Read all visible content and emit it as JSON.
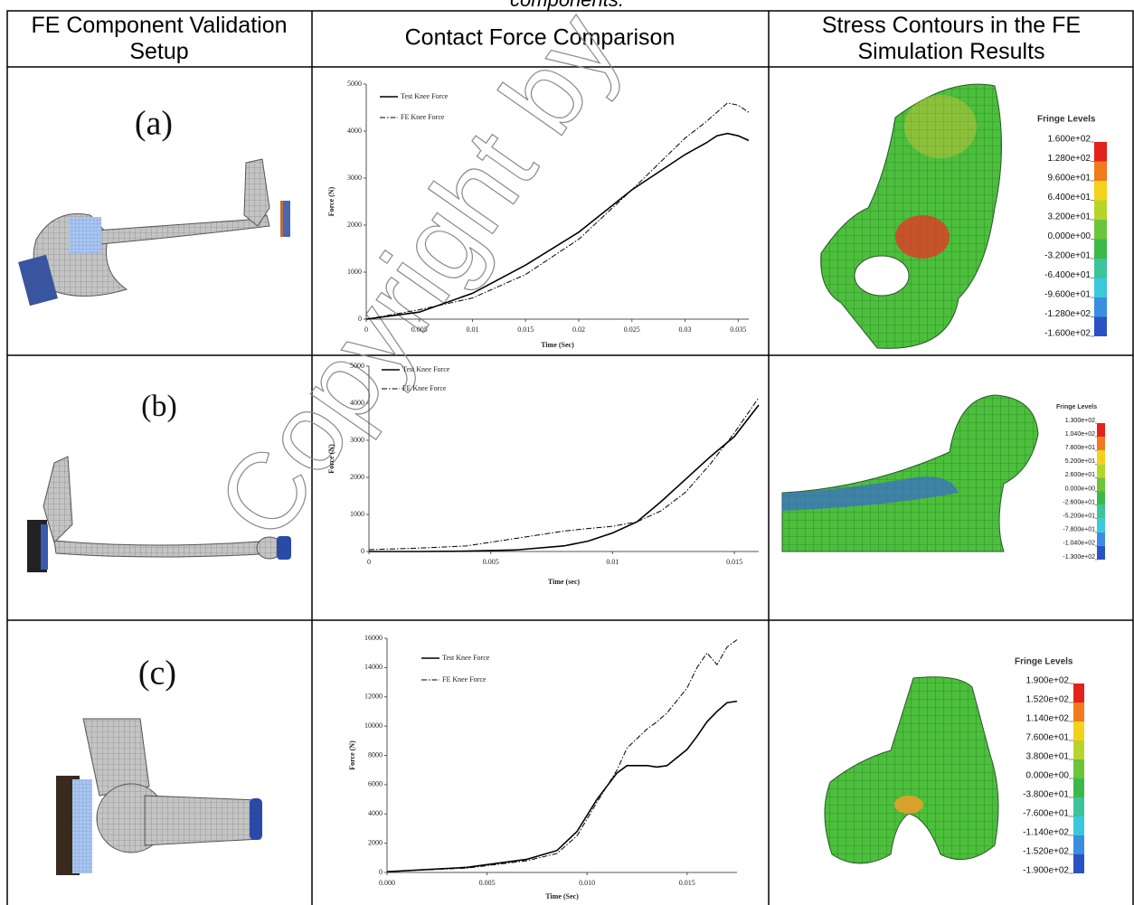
{
  "caption": "components.",
  "watermark": "Copyright by",
  "table": {
    "headers": [
      "FE Component Validation Setup",
      "Contact Force Comparison",
      "Stress Contours in the FE Simulation Results"
    ],
    "rows": [
      {
        "label": "(a)",
        "fringe": {
          "title": "Fringe Levels",
          "levels": [
            "1.600e+02",
            "1.280e+02",
            "9.600e+01",
            "6.400e+01",
            "3.200e+01",
            "0.000e+00",
            "-3.200e+01",
            "-6.400e+01",
            "-9.600e+01",
            "-1.280e+02",
            "-1.600e+02"
          ]
        }
      },
      {
        "label": "(b)",
        "fringe": {
          "title": "Fringe Levels",
          "levels": [
            "1.300e+02",
            "1.040e+02",
            "7.800e+01",
            "5.200e+01",
            "2.600e+01",
            "0.000e+00",
            "-2.600e+01",
            "-5.200e+01",
            "-7.800e+01",
            "-1.040e+02",
            "-1.300e+02"
          ]
        }
      },
      {
        "label": "(c)",
        "fringe": {
          "title": "Fringe Levels",
          "levels": [
            "1.900e+02",
            "1.520e+02",
            "1.140e+02",
            "7.600e+01",
            "3.800e+01",
            "0.000e+00",
            "-3.800e+01",
            "-7.600e+01",
            "-1.140e+02",
            "-1.520e+02",
            "-1.900e+02"
          ]
        }
      }
    ],
    "fringe_colors": [
      "#e3221c",
      "#f07a1c",
      "#f3d21c",
      "#b8d42a",
      "#6cc43a",
      "#3cb84a",
      "#3cc49a",
      "#3cc8dc",
      "#3a8ee0",
      "#2a52c4"
    ]
  },
  "chart_data": [
    {
      "type": "line",
      "xlabel": "Time (Sec)",
      "ylabel": "Force (N)",
      "xlim": [
        0,
        0.036
      ],
      "ylim": [
        0,
        5000
      ],
      "xticks": [
        0,
        0.005,
        0.01,
        0.015,
        0.02,
        0.025,
        0.03,
        0.035
      ],
      "yticks": [
        0,
        1000,
        2000,
        3000,
        4000,
        5000
      ],
      "x": [
        0,
        0.005,
        0.01,
        0.015,
        0.02,
        0.025,
        0.03,
        0.032,
        0.033,
        0.034,
        0.035,
        0.036
      ],
      "series": [
        {
          "name": "Test Knee Force",
          "color": "#000000",
          "style": "solid",
          "values": [
            0,
            150,
            550,
            1150,
            1850,
            2750,
            3500,
            3750,
            3900,
            3950,
            3900,
            3800
          ]
        },
        {
          "name": "FE Knee Force",
          "color": "#000000",
          "style": "dashdot",
          "values": [
            0,
            200,
            450,
            950,
            1700,
            2750,
            3850,
            4200,
            4400,
            4600,
            4550,
            4400
          ]
        }
      ]
    },
    {
      "type": "line",
      "xlabel": "Time (sec)",
      "ylabel": "Force (N)",
      "xlim": [
        0,
        0.016
      ],
      "ylim": [
        0,
        5000
      ],
      "xticks": [
        0,
        0.005,
        0.01,
        0.015
      ],
      "yticks": [
        0,
        1000,
        2000,
        3000,
        4000,
        5000
      ],
      "x": [
        0,
        0.002,
        0.004,
        0.006,
        0.008,
        0.009,
        0.01,
        0.011,
        0.012,
        0.013,
        0.014,
        0.015,
        0.016
      ],
      "series": [
        {
          "name": "Test Knee Force",
          "color": "#000000",
          "style": "solid",
          "values": [
            0,
            0,
            10,
            40,
            150,
            280,
            500,
            800,
            1350,
            1950,
            2550,
            3100,
            3950
          ]
        },
        {
          "name": "FE Knee Force",
          "color": "#000000",
          "style": "dashdot",
          "values": [
            50,
            90,
            150,
            350,
            550,
            620,
            680,
            800,
            1100,
            1600,
            2350,
            3200,
            4150
          ]
        }
      ]
    },
    {
      "type": "line",
      "xlabel": "Time (Sec)",
      "ylabel": "Force (N)",
      "xlim": [
        0,
        0.0175
      ],
      "ylim": [
        0,
        16000
      ],
      "xticks": [
        {
          "value": 0,
          "label": "0.000"
        },
        0.005,
        {
          "value": 0.01,
          "label": "0.010"
        },
        0.015
      ],
      "yticks": [
        0,
        2000,
        4000,
        6000,
        8000,
        10000,
        12000,
        14000,
        16000
      ],
      "x": [
        0,
        0.004,
        0.007,
        0.0085,
        0.0095,
        0.0105,
        0.0115,
        0.012,
        0.013,
        0.0135,
        0.014,
        0.015,
        0.0155,
        0.016,
        0.0165,
        0.017,
        0.0175
      ],
      "series": [
        {
          "name": "Test Knee Force",
          "color": "#000000",
          "style": "solid",
          "values": [
            50,
            350,
            900,
            1500,
            2800,
            5000,
            6800,
            7300,
            7300,
            7200,
            7300,
            8400,
            9300,
            10300,
            11000,
            11600,
            11700
          ]
        },
        {
          "name": "FE Knee Force",
          "color": "#000000",
          "style": "dashdot",
          "values": [
            50,
            300,
            800,
            1300,
            2500,
            4800,
            7000,
            8500,
            9800,
            10300,
            10900,
            12600,
            14000,
            15000,
            14200,
            15400,
            15900
          ]
        }
      ]
    }
  ]
}
